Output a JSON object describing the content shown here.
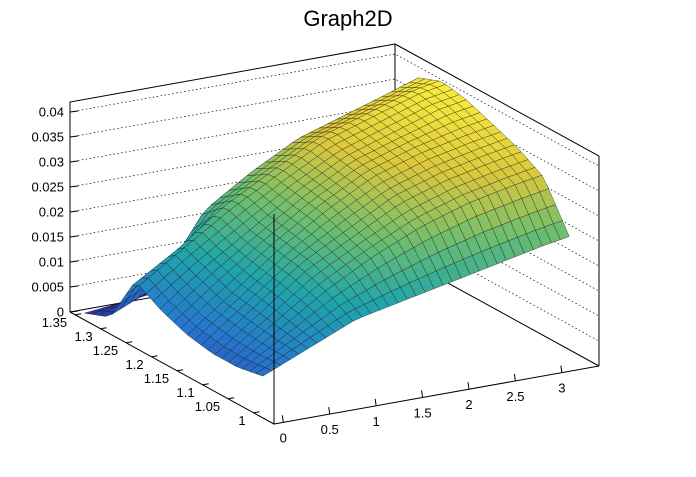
{
  "chart_data": {
    "type": "surface",
    "title": "Graph2D",
    "xlabel": "",
    "ylabel": "",
    "zlabel": "",
    "xlim": [
      -0.1,
      3.4
    ],
    "ylim": [
      0.96,
      1.36
    ],
    "zlim": [
      0,
      0.042
    ],
    "x_ticks": [
      "0",
      "0.5",
      "1",
      "1.5",
      "2",
      "2.5",
      "3"
    ],
    "y_ticks": [
      "1",
      "1.05",
      "1.1",
      "1.15",
      "1.2",
      "1.25",
      "1.3",
      "1.35"
    ],
    "z_ticks": [
      "0",
      "0.005",
      "0.01",
      "0.015",
      "0.02",
      "0.025",
      "0.03",
      "0.035",
      "0.04"
    ],
    "grid": true,
    "colormap": "viridis-like (blue → teal → green → yellow)",
    "colors": {
      "low": "#2f46c8",
      "mid": "#23a7a0",
      "mid_high": "#8ccf66",
      "high": "#fff132"
    },
    "x_values": [
      0,
      0.5,
      1,
      1.5,
      2,
      2.5,
      3,
      3.3
    ],
    "y_values": [
      1.0,
      1.05,
      1.1,
      1.15,
      1.2,
      1.25,
      1.3,
      1.35
    ],
    "z_values": [
      [
        0.007,
        0.011,
        0.015,
        0.017,
        0.019,
        0.021,
        0.023,
        0.024
      ],
      [
        0.006,
        0.012,
        0.018,
        0.023,
        0.027,
        0.03,
        0.032,
        0.033
      ],
      [
        0.006,
        0.013,
        0.02,
        0.025,
        0.03,
        0.033,
        0.035,
        0.036
      ],
      [
        0.007,
        0.014,
        0.021,
        0.027,
        0.032,
        0.035,
        0.037,
        0.038
      ],
      [
        0.009,
        0.016,
        0.022,
        0.028,
        0.033,
        0.036,
        0.039,
        0.04
      ],
      [
        0.012,
        0.018,
        0.024,
        0.029,
        0.034,
        0.037,
        0.04,
        0.041
      ],
      [
        0.002,
        0.006,
        0.02,
        0.026,
        0.031,
        0.034,
        0.037,
        0.039
      ],
      [
        0.0,
        0.001,
        0.002,
        0.004,
        0.022,
        0.026,
        0.029,
        0.031
      ]
    ]
  }
}
